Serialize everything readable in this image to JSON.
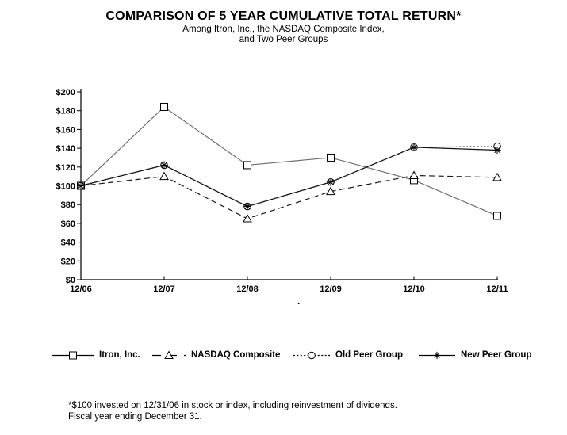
{
  "page": {
    "title": "COMPARISON OF 5 YEAR CUMULATIVE TOTAL RETURN*",
    "subtitle1": "Among Itron, Inc., the NASDAQ Composite Index,",
    "subtitle2": "and Two Peer Groups"
  },
  "misc": {
    "stray_dot": "."
  },
  "footnote": {
    "line1": "*$100 invested on 12/31/06 in stock or index, including reinvestment of dividends.",
    "line2": "Fiscal year ending December 31."
  },
  "chart_data": {
    "type": "line",
    "title": "COMPARISON OF 5 YEAR CUMULATIVE TOTAL RETURN*",
    "subtitle": "Among Itron, Inc., the NASDAQ Composite Index, and Two Peer Groups",
    "categories": [
      "12/06",
      "12/07",
      "12/08",
      "12/09",
      "12/10",
      "12/11"
    ],
    "series": [
      {
        "name": "Itron, Inc.",
        "marker": "square",
        "line_style": "solid",
        "color": "#6e6e6e",
        "values": [
          100,
          184,
          122,
          130,
          106,
          68
        ]
      },
      {
        "name": "NASDAQ Composite",
        "marker": "triangle",
        "line_style": "dashed",
        "color": "#1a1a1a",
        "values": [
          100,
          110,
          65,
          94,
          111,
          109
        ]
      },
      {
        "name": "Old Peer Group",
        "marker": "circle",
        "line_style": "dotted",
        "color": "#1a1a1a",
        "values": [
          100,
          122,
          78,
          104,
          141,
          142
        ]
      },
      {
        "name": "New Peer Group",
        "marker": "star",
        "line_style": "solid",
        "color": "#111111",
        "values": [
          100,
          122,
          78,
          104,
          141,
          138
        ]
      }
    ],
    "xlabel": "",
    "ylabel": "",
    "ylim": [
      0,
      200
    ],
    "y_ticks": [
      {
        "value": 0,
        "label": "$0"
      },
      {
        "value": 20,
        "label": "$20"
      },
      {
        "value": 40,
        "label": "$40"
      },
      {
        "value": 60,
        "label": "$60"
      },
      {
        "value": 80,
        "label": "$80"
      },
      {
        "value": 100,
        "label": "$100"
      },
      {
        "value": 120,
        "label": "$120"
      },
      {
        "value": 140,
        "label": "$140"
      },
      {
        "value": 160,
        "label": "$160"
      },
      {
        "value": 180,
        "label": "$180"
      },
      {
        "value": 200,
        "label": "$200"
      }
    ],
    "grid": false,
    "legend_position": "bottom",
    "axis_color": "#000000"
  }
}
